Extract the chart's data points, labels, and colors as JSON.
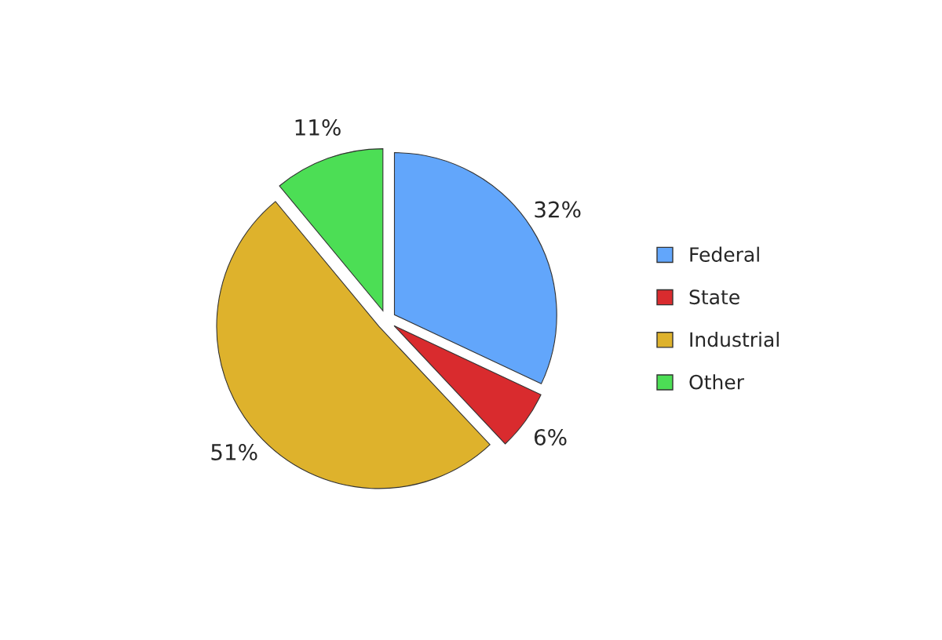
{
  "chart_data": {
    "type": "pie",
    "categories": [
      "Federal",
      "State",
      "Industrial",
      "Other"
    ],
    "values": [
      32,
      6,
      51,
      11
    ],
    "value_labels": [
      "32%",
      "6%",
      "51%",
      "11%"
    ],
    "colors": [
      "#62a6fb",
      "#d92b2e",
      "#deb22c",
      "#4cde55"
    ],
    "legend": "right"
  }
}
